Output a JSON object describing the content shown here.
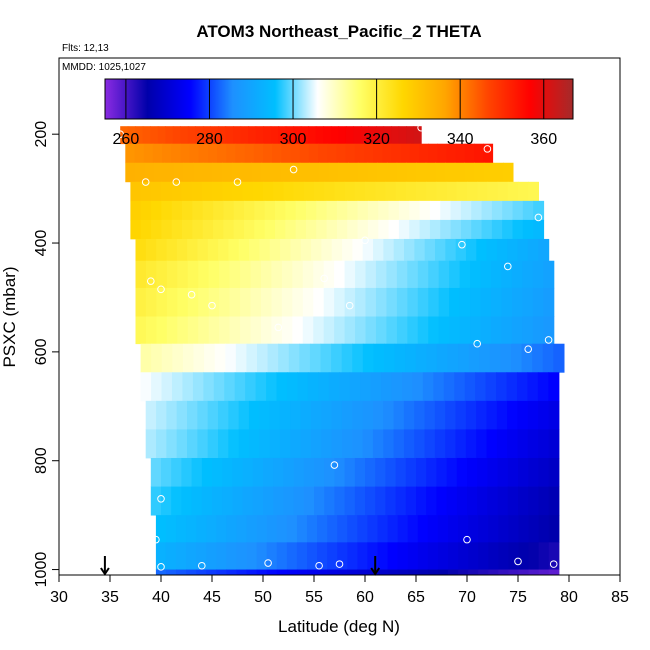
{
  "chart_data": {
    "type": "heatmap",
    "title": "ATOM3 Northeast_Pacific_2 THETA",
    "flights_label": "Flts: 12,13",
    "date_label": "MMDD: 1025,1027",
    "xlabel": "Latitude (deg N)",
    "ylabel": "PSXC (mbar)",
    "xlim": [
      30,
      85
    ],
    "ylim": [
      1010,
      60
    ],
    "y_inverted": true,
    "x_ticks": [
      30,
      35,
      40,
      45,
      50,
      55,
      60,
      65,
      70,
      75,
      80,
      85
    ],
    "y_ticks": [
      200,
      400,
      600,
      800,
      1000
    ],
    "colorbar": {
      "range": [
        255,
        367
      ],
      "ticks": [
        260,
        280,
        300,
        320,
        340,
        360
      ],
      "colors": [
        "#8a2be2",
        "#0000aa",
        "#0000ff",
        "#1e90ff",
        "#00bfff",
        "#ffffff",
        "#ffff66",
        "#ffd700",
        "#ffa500",
        "#ff4500",
        "#ff0000",
        "#a52a2a"
      ]
    },
    "rows": [
      {
        "p": 200,
        "lat": [
          36.0,
          65.5
        ],
        "theta": [
          343,
          362
        ]
      },
      {
        "p": 235,
        "lat": [
          36.5,
          72.5
        ],
        "theta": [
          338,
          354
        ]
      },
      {
        "p": 270,
        "lat": [
          36.5,
          74.5
        ],
        "theta": [
          334,
          328
        ]
      },
      {
        "p": 305,
        "lat": [
          37.0,
          77.0
        ],
        "theta": [
          330,
          318
        ]
      },
      {
        "p": 340,
        "lat": [
          37.0,
          77.5
        ],
        "theta": [
          328,
          298
        ]
      },
      {
        "p": 375,
        "lat": [
          37.0,
          77.5
        ],
        "theta": [
          327,
          294
        ]
      },
      {
        "p": 410,
        "lat": [
          37.5,
          78.0
        ],
        "theta": [
          325,
          290
        ]
      },
      {
        "p": 455,
        "lat": [
          37.5,
          78.5
        ],
        "theta": [
          322,
          289
        ]
      },
      {
        "p": 510,
        "lat": [
          37.5,
          78.5
        ],
        "theta": [
          320,
          288
        ]
      },
      {
        "p": 560,
        "lat": [
          37.5,
          78.5
        ],
        "theta": [
          318,
          287
        ]
      },
      {
        "p": 610,
        "lat": [
          38.0,
          79.5
        ],
        "theta": [
          312,
          282
        ]
      },
      {
        "p": 665,
        "lat": [
          38.0,
          79.0
        ],
        "theta": [
          306,
          275
        ]
      },
      {
        "p": 715,
        "lat": [
          38.5,
          79.0
        ],
        "theta": [
          304,
          272
        ]
      },
      {
        "p": 770,
        "lat": [
          38.5,
          79.0
        ],
        "theta": [
          303,
          270
        ]
      },
      {
        "p": 820,
        "lat": [
          39.0,
          79.0
        ],
        "theta": [
          300,
          268
        ]
      },
      {
        "p": 875,
        "lat": [
          39.0,
          79.0
        ],
        "theta": [
          298,
          266
        ]
      },
      {
        "p": 925,
        "lat": [
          39.5,
          79.0
        ],
        "theta": [
          296,
          265
        ]
      },
      {
        "p": 975,
        "lat": [
          39.5,
          79.0
        ],
        "theta": [
          293,
          263
        ]
      }
    ],
    "bottom_row": {
      "p_top": 1000,
      "p_bot": 1010,
      "lat": [
        39.5,
        79.0
      ],
      "theta": [
        283,
        258
      ]
    },
    "samples": [
      {
        "x": 36.0,
        "y": 200
      },
      {
        "x": 65.5,
        "y": 188
      },
      {
        "x": 72.0,
        "y": 227
      },
      {
        "x": 38.5,
        "y": 288
      },
      {
        "x": 41.5,
        "y": 288
      },
      {
        "x": 47.5,
        "y": 288
      },
      {
        "x": 53.0,
        "y": 265
      },
      {
        "x": 77.0,
        "y": 353
      },
      {
        "x": 60.0,
        "y": 395
      },
      {
        "x": 69.5,
        "y": 403
      },
      {
        "x": 74.0,
        "y": 443
      },
      {
        "x": 37.0,
        "y": 450
      },
      {
        "x": 39.0,
        "y": 470
      },
      {
        "x": 40.0,
        "y": 485
      },
      {
        "x": 43.0,
        "y": 495
      },
      {
        "x": 45.0,
        "y": 515
      },
      {
        "x": 56.0,
        "y": 465
      },
      {
        "x": 58.5,
        "y": 515
      },
      {
        "x": 51.5,
        "y": 555
      },
      {
        "x": 71.0,
        "y": 585
      },
      {
        "x": 76.0,
        "y": 595
      },
      {
        "x": 78.0,
        "y": 578
      },
      {
        "x": 57.0,
        "y": 808
      },
      {
        "x": 40.0,
        "y": 870
      },
      {
        "x": 39.5,
        "y": 945
      },
      {
        "x": 70.0,
        "y": 945
      },
      {
        "x": 75.0,
        "y": 985
      },
      {
        "x": 78.5,
        "y": 990
      },
      {
        "x": 40.0,
        "y": 995
      },
      {
        "x": 44.0,
        "y": 993
      },
      {
        "x": 50.5,
        "y": 988
      },
      {
        "x": 55.5,
        "y": 993
      },
      {
        "x": 57.5,
        "y": 990
      }
    ],
    "arrows": [
      34.5,
      61.0
    ]
  }
}
